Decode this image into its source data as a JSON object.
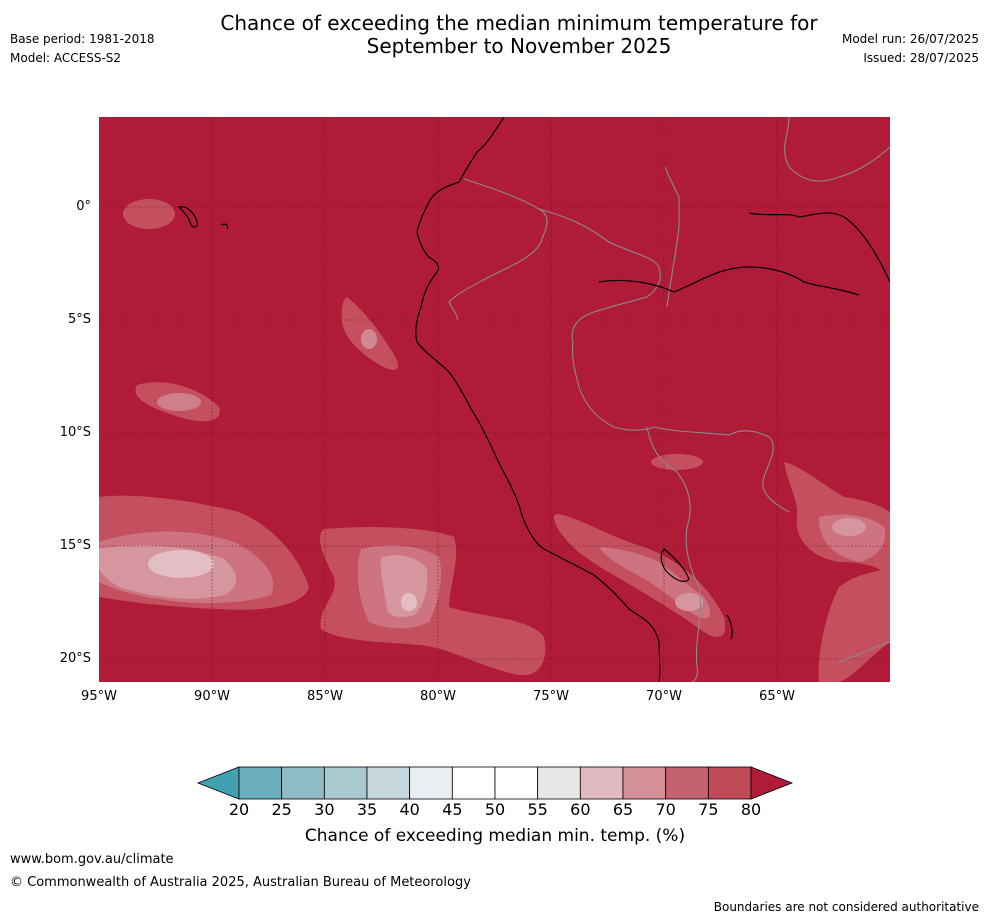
{
  "header": {
    "left_lines": [
      "Base period: 1981-2018",
      "Model: ACCESS-S2"
    ],
    "title_lines": [
      "Chance of exceeding the median minimum temperature for",
      "September to November 2025"
    ],
    "right_lines": [
      "Model run: 26/07/2025",
      "Issued: 28/07/2025"
    ]
  },
  "map": {
    "latitude_labels": [
      "0°",
      "5°S",
      "10°S",
      "15°S",
      "20°S"
    ],
    "longitude_labels": [
      "95°W",
      "90°W",
      "85°W",
      "80°W",
      "75°W",
      "70°W",
      "65°W"
    ],
    "base_color": "#b01c37"
  },
  "colorbar": {
    "ticks": [
      "20",
      "25",
      "30",
      "35",
      "40",
      "45",
      "50",
      "55",
      "60",
      "65",
      "70",
      "75",
      "80"
    ],
    "colors": [
      "#41a1b0",
      "#6aaebb",
      "#8ebbc6",
      "#a8c9d0",
      "#c6d8de",
      "#e9eff1",
      "#ffffff",
      "#ffffff",
      "#e6e6e6",
      "#dfb9c0",
      "#d49098",
      "#c4626f",
      "#bf4a58",
      "#b01c37"
    ],
    "label": "Chance of exceeding median min. temp. (%)"
  },
  "footer": {
    "url": "www.bom.gov.au/climate",
    "copyright": "© Commonwealth of Australia 2025, Australian Bureau of Meteorology",
    "disclaimer": "Boundaries are not considered authoritative"
  }
}
